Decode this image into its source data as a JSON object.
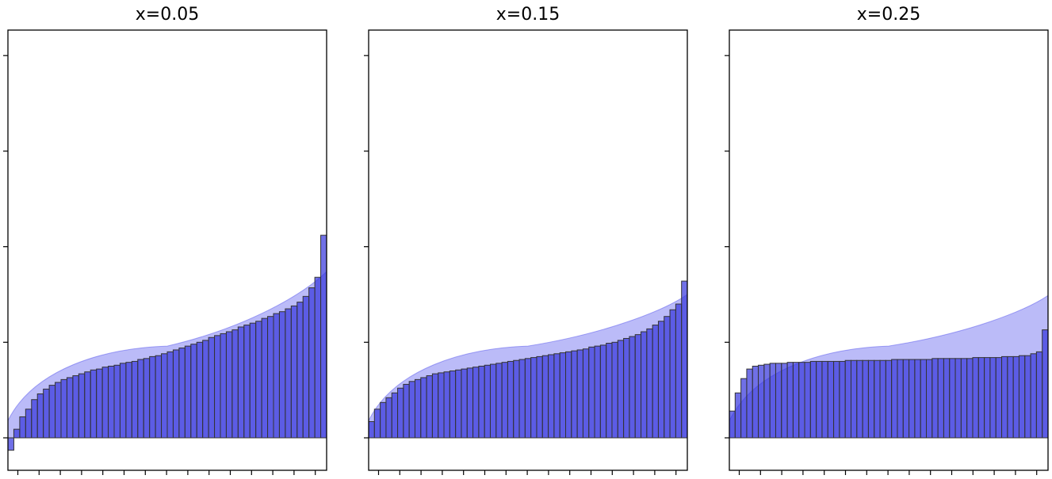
{
  "chart_data": [
    {
      "type": "bar",
      "title": "x=0.05",
      "xlabel": "",
      "ylabel": "",
      "ylim": [
        -0.34,
        4.27
      ],
      "yticks": [
        0,
        1,
        2,
        3,
        4
      ],
      "xticks": 15,
      "grid": false,
      "legend": "none",
      "values": [
        -0.13,
        0.09,
        0.22,
        0.3,
        0.4,
        0.46,
        0.51,
        0.55,
        0.58,
        0.61,
        0.63,
        0.65,
        0.67,
        0.69,
        0.71,
        0.72,
        0.74,
        0.75,
        0.76,
        0.78,
        0.79,
        0.8,
        0.82,
        0.83,
        0.85,
        0.86,
        0.88,
        0.9,
        0.92,
        0.94,
        0.96,
        0.98,
        1.0,
        1.02,
        1.05,
        1.07,
        1.09,
        1.11,
        1.13,
        1.16,
        1.18,
        1.2,
        1.22,
        1.25,
        1.27,
        1.3,
        1.32,
        1.35,
        1.38,
        1.42,
        1.48,
        1.57,
        1.68,
        2.12
      ],
      "curve": [
        0.18,
        0.96,
        1.74
      ]
    },
    {
      "type": "bar",
      "title": "x=0.15",
      "xlabel": "",
      "ylabel": "",
      "ylim": [
        -0.34,
        4.27
      ],
      "yticks": [
        0,
        1,
        2,
        3,
        4
      ],
      "xticks": 15,
      "grid": false,
      "legend": "none",
      "values": [
        0.17,
        0.3,
        0.37,
        0.42,
        0.47,
        0.52,
        0.56,
        0.59,
        0.61,
        0.63,
        0.65,
        0.67,
        0.68,
        0.69,
        0.7,
        0.71,
        0.72,
        0.73,
        0.74,
        0.75,
        0.76,
        0.77,
        0.78,
        0.79,
        0.8,
        0.81,
        0.82,
        0.83,
        0.84,
        0.85,
        0.86,
        0.87,
        0.88,
        0.89,
        0.9,
        0.91,
        0.92,
        0.93,
        0.95,
        0.96,
        0.97,
        0.99,
        1.0,
        1.02,
        1.04,
        1.06,
        1.08,
        1.11,
        1.14,
        1.18,
        1.22,
        1.27,
        1.34,
        1.4,
        1.64
      ],
      "curve": [
        0.18,
        0.96,
        1.5
      ]
    },
    {
      "type": "bar",
      "title": "x=0.25",
      "xlabel": "",
      "ylabel": "",
      "ylim": [
        -0.34,
        4.27
      ],
      "yticks": [
        0,
        1,
        2,
        3,
        4
      ],
      "xticks": 15,
      "grid": false,
      "legend": "none",
      "values": [
        0.28,
        0.47,
        0.62,
        0.72,
        0.75,
        0.76,
        0.77,
        0.78,
        0.78,
        0.78,
        0.79,
        0.79,
        0.79,
        0.79,
        0.8,
        0.8,
        0.8,
        0.8,
        0.8,
        0.8,
        0.81,
        0.81,
        0.81,
        0.81,
        0.81,
        0.81,
        0.81,
        0.81,
        0.82,
        0.82,
        0.82,
        0.82,
        0.82,
        0.82,
        0.82,
        0.83,
        0.83,
        0.83,
        0.83,
        0.83,
        0.83,
        0.83,
        0.84,
        0.84,
        0.84,
        0.84,
        0.84,
        0.85,
        0.85,
        0.85,
        0.86,
        0.86,
        0.88,
        0.9,
        1.13
      ],
      "curve": [
        0.18,
        0.96,
        1.49
      ]
    }
  ]
}
